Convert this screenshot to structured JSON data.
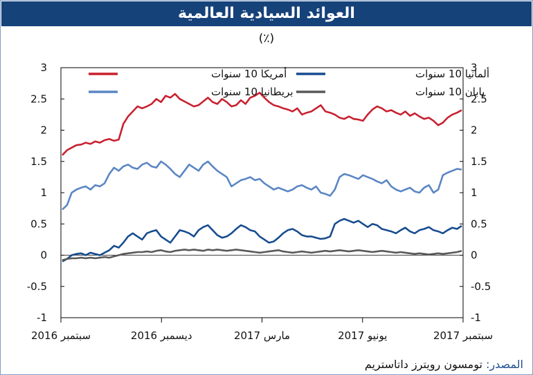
{
  "title": "العوائد السيادية العالمية",
  "subtitle": "(٪)",
  "source": {
    "label": "المصدر:",
    "text": "تومسون رويترز داتاستريم"
  },
  "chart_data": {
    "type": "line",
    "ylim": [
      -1,
      3
    ],
    "ytick_labels": [
      "3",
      "2.5",
      "2",
      "1.5",
      "1",
      "0.5",
      "0",
      "-0.5",
      "-1"
    ],
    "ytick_values": [
      3,
      2.5,
      2,
      1.5,
      1,
      0.5,
      0,
      -0.5,
      -1
    ],
    "xtick_labels": [
      "سبتمبر 2016",
      "ديسمبر 2016",
      "مارس 2017",
      "يونيو 2017",
      "سبتمبر 2017"
    ],
    "grid": false,
    "legend_position": "top",
    "series": [
      {
        "name": "أمريكا 10 سنوات",
        "color": "#c8202f",
        "values": [
          1.6,
          1.68,
          1.72,
          1.76,
          1.77,
          1.8,
          1.78,
          1.82,
          1.8,
          1.84,
          1.86,
          1.83,
          1.85,
          2.1,
          2.22,
          2.3,
          2.38,
          2.35,
          2.38,
          2.42,
          2.5,
          2.45,
          2.55,
          2.52,
          2.58,
          2.5,
          2.46,
          2.42,
          2.38,
          2.4,
          2.46,
          2.52,
          2.45,
          2.42,
          2.5,
          2.45,
          2.38,
          2.4,
          2.48,
          2.42,
          2.52,
          2.55,
          2.6,
          2.52,
          2.45,
          2.4,
          2.38,
          2.35,
          2.33,
          2.3,
          2.35,
          2.25,
          2.28,
          2.3,
          2.35,
          2.4,
          2.3,
          2.28,
          2.25,
          2.2,
          2.18,
          2.22,
          2.18,
          2.17,
          2.15,
          2.25,
          2.33,
          2.38,
          2.35,
          2.3,
          2.32,
          2.28,
          2.25,
          2.3,
          2.23,
          2.27,
          2.22,
          2.18,
          2.2,
          2.15,
          2.08,
          2.12,
          2.2,
          2.25,
          2.28,
          2.32
        ]
      },
      {
        "name": "ألمانيا 10 سنوات",
        "color": "#174c8f",
        "values": [
          -0.1,
          -0.06,
          0.0,
          0.02,
          0.03,
          0.0,
          0.04,
          0.02,
          0.0,
          0.04,
          0.08,
          0.15,
          0.12,
          0.2,
          0.3,
          0.35,
          0.3,
          0.25,
          0.35,
          0.38,
          0.4,
          0.3,
          0.25,
          0.2,
          0.3,
          0.4,
          0.38,
          0.35,
          0.3,
          0.4,
          0.45,
          0.48,
          0.4,
          0.32,
          0.28,
          0.3,
          0.35,
          0.42,
          0.48,
          0.45,
          0.4,
          0.38,
          0.3,
          0.25,
          0.2,
          0.22,
          0.28,
          0.35,
          0.4,
          0.42,
          0.38,
          0.32,
          0.3,
          0.3,
          0.28,
          0.26,
          0.27,
          0.3,
          0.5,
          0.55,
          0.58,
          0.55,
          0.52,
          0.55,
          0.5,
          0.45,
          0.5,
          0.48,
          0.42,
          0.4,
          0.38,
          0.35,
          0.4,
          0.44,
          0.38,
          0.35,
          0.4,
          0.42,
          0.45,
          0.4,
          0.38,
          0.35,
          0.4,
          0.44,
          0.42,
          0.47
        ]
      },
      {
        "name": "بريطانيا 10 سنوات",
        "color": "#5a86c4",
        "values": [
          0.73,
          0.8,
          1.0,
          1.05,
          1.08,
          1.1,
          1.05,
          1.12,
          1.1,
          1.15,
          1.3,
          1.4,
          1.35,
          1.42,
          1.45,
          1.4,
          1.38,
          1.45,
          1.48,
          1.42,
          1.4,
          1.5,
          1.45,
          1.38,
          1.3,
          1.25,
          1.35,
          1.45,
          1.4,
          1.35,
          1.45,
          1.5,
          1.42,
          1.35,
          1.3,
          1.25,
          1.1,
          1.15,
          1.2,
          1.22,
          1.25,
          1.2,
          1.22,
          1.15,
          1.1,
          1.05,
          1.08,
          1.05,
          1.02,
          1.05,
          1.1,
          1.12,
          1.08,
          1.05,
          1.1,
          1.0,
          0.98,
          0.95,
          1.05,
          1.25,
          1.3,
          1.28,
          1.25,
          1.22,
          1.28,
          1.25,
          1.22,
          1.18,
          1.15,
          1.2,
          1.1,
          1.05,
          1.02,
          1.05,
          1.08,
          1.02,
          1.0,
          1.08,
          1.12,
          1.0,
          1.05,
          1.28,
          1.32,
          1.35,
          1.38,
          1.37
        ]
      },
      {
        "name": "يابان 10 سنوات",
        "color": "#595959",
        "values": [
          -0.08,
          -0.06,
          -0.05,
          -0.05,
          -0.04,
          -0.05,
          -0.04,
          -0.05,
          -0.04,
          -0.03,
          -0.04,
          -0.02,
          0.0,
          0.02,
          0.03,
          0.04,
          0.05,
          0.05,
          0.06,
          0.05,
          0.07,
          0.08,
          0.06,
          0.05,
          0.07,
          0.08,
          0.09,
          0.08,
          0.09,
          0.08,
          0.07,
          0.09,
          0.08,
          0.09,
          0.08,
          0.07,
          0.08,
          0.09,
          0.08,
          0.07,
          0.06,
          0.05,
          0.04,
          0.05,
          0.06,
          0.07,
          0.08,
          0.06,
          0.05,
          0.04,
          0.05,
          0.06,
          0.05,
          0.04,
          0.05,
          0.06,
          0.07,
          0.06,
          0.07,
          0.08,
          0.07,
          0.06,
          0.07,
          0.08,
          0.07,
          0.06,
          0.05,
          0.06,
          0.07,
          0.06,
          0.05,
          0.04,
          0.05,
          0.04,
          0.03,
          0.02,
          0.03,
          0.02,
          0.01,
          0.02,
          0.03,
          0.02,
          0.03,
          0.04,
          0.05,
          0.07
        ]
      }
    ]
  }
}
